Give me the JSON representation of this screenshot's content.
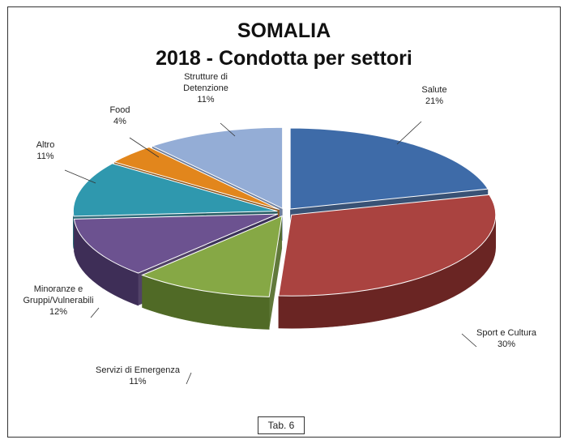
{
  "chart_data": {
    "type": "pie",
    "title": "SOMALIA",
    "subtitle": "2018 - Condotta per settori",
    "slices": [
      {
        "name": "Salute",
        "lines": [
          "Salute",
          "21%"
        ],
        "value": 21,
        "color": "#3E6BA8",
        "dark": "#233F66"
      },
      {
        "name": "Sport e Cultura",
        "lines": [
          "Sport e Cultura",
          "30%"
        ],
        "value": 30,
        "color": "#AA4340",
        "dark": "#6A2523"
      },
      {
        "name": "Servizi di Emergenza",
        "lines": [
          "Servizi di Emergenza",
          "11%"
        ],
        "value": 11,
        "color": "#86A845",
        "dark": "#506A26"
      },
      {
        "name": "Minoranze e Gruppi/Vulnerabili",
        "lines": [
          "Minoranze e",
          "Gruppi/Vulnerabili",
          "12%"
        ],
        "value": 12,
        "color": "#6C5290",
        "dark": "#3E2E57"
      },
      {
        "name": "Altro",
        "lines": [
          "Altro",
          "11%"
        ],
        "value": 11,
        "color": "#2F98AE",
        "dark": "#1A5C6B"
      },
      {
        "name": "Food",
        "lines": [
          "Food",
          "4%"
        ],
        "value": 4,
        "color": "#E2861C",
        "dark": "#8E520F"
      },
      {
        "name": "Strutture di Detenzione",
        "lines": [
          "Strutture di",
          "Detenzione",
          "11%"
        ],
        "value": 11,
        "color": "#94ADD6",
        "dark": "#5E7193"
      }
    ],
    "legend": "none"
  },
  "footer": {
    "tab_label": "Tab. 6"
  }
}
